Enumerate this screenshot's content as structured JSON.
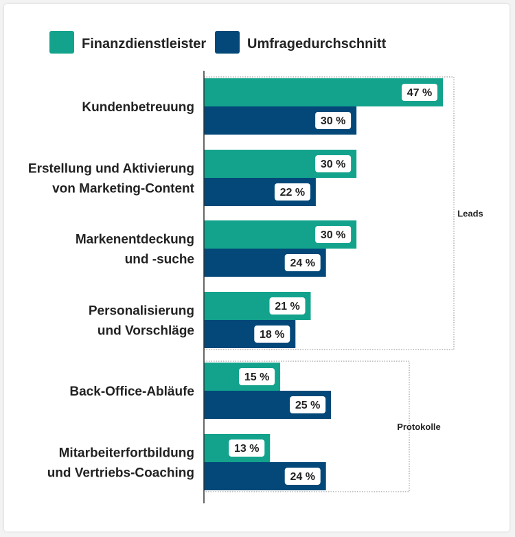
{
  "colors": {
    "Finanzdienstleister": "#13a38d",
    "Umfragedurchschnitt": "#034878",
    "axis": "#333333",
    "bracket": "#888888",
    "text": "#222222",
    "badge_text": "#222222"
  },
  "chart_data": {
    "type": "bar",
    "orientation": "horizontal",
    "title": "",
    "xlabel": "",
    "ylabel": "",
    "xlim": [
      0,
      50
    ],
    "grid": false,
    "legend_position": "top",
    "value_suffix": " %",
    "categories": [
      [
        "Kundenbetreuung"
      ],
      [
        "Erstellung und Aktivierung",
        "von Marketing-Content"
      ],
      [
        "Markenentdeckung",
        "und -suche"
      ],
      [
        "Personalisierung",
        "und Vorschläge"
      ],
      [
        "Back-Office-Abläufe"
      ],
      [
        "Mitarbeiterfortbildung",
        "und Vertriebs-Coaching"
      ]
    ],
    "series": [
      {
        "name": "Finanzdienstleister",
        "values": [
          47,
          30,
          30,
          21,
          15,
          13
        ]
      },
      {
        "name": "Umfragedurchschnitt",
        "values": [
          30,
          22,
          24,
          18,
          25,
          24
        ]
      }
    ],
    "groups": [
      {
        "label": "Leads",
        "from": 0,
        "to": 3
      },
      {
        "label": "Protokolle",
        "from": 4,
        "to": 5
      }
    ]
  }
}
